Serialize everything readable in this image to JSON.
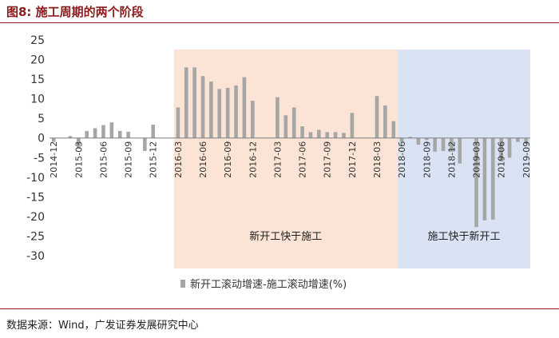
{
  "figure": {
    "title": "图8: 施工周期的两个阶段",
    "source": "数据来源：Wind，广发证券发展研究中心"
  },
  "chart_data": {
    "type": "bar",
    "title": "",
    "xlabel": "",
    "ylabel": "",
    "ylim": [
      -30,
      25
    ],
    "yticks": [
      25,
      20,
      15,
      10,
      5,
      0,
      -5,
      -10,
      -15,
      -20,
      -25,
      -30
    ],
    "grid": false,
    "legend_position": "bottom",
    "colors": {
      "bar": "#a6a6a6",
      "region1": "#fbe4d5",
      "region2": "#dae3f3"
    },
    "categories": [
      "2014-12",
      "2015-01",
      "2015-02",
      "2015-03",
      "2015-04",
      "2015-05",
      "2015-06",
      "2015-07",
      "2015-08",
      "2015-09",
      "2015-10",
      "2015-11",
      "2015-12",
      "2016-01",
      "2016-02",
      "2016-03",
      "2016-04",
      "2016-05",
      "2016-06",
      "2016-07",
      "2016-08",
      "2016-09",
      "2016-10",
      "2016-11",
      "2016-12",
      "2017-01",
      "2017-02",
      "2017-03",
      "2017-04",
      "2017-05",
      "2017-06",
      "2017-07",
      "2017-08",
      "2017-09",
      "2017-10",
      "2017-11",
      "2017-12",
      "2018-01",
      "2018-02",
      "2018-03",
      "2018-04",
      "2018-05",
      "2018-06",
      "2018-07",
      "2018-08",
      "2018-09",
      "2018-10",
      "2018-11",
      "2018-12",
      "2019-01",
      "2019-02",
      "2019-03",
      "2019-04",
      "2019-05",
      "2019-06",
      "2019-07",
      "2019-08",
      "2019-09"
    ],
    "xtick_labels": [
      "2014-12",
      "2015-03",
      "2015-06",
      "2015-09",
      "2015-12",
      "2016-03",
      "2016-06",
      "2016-09",
      "2016-12",
      "2017-03",
      "2017-06",
      "2017-09",
      "2017-12",
      "2018-03",
      "2018-06",
      "2018-09",
      "2018-12",
      "2019-03",
      "2019-06",
      "2019-09"
    ],
    "series": [
      {
        "name": "新开工滚动增速-施工滚动增速(%)",
        "values": [
          -1.0,
          null,
          0.5,
          -2.5,
          1.8,
          2.5,
          3.3,
          4.0,
          1.8,
          1.6,
          null,
          -3.3,
          3.4,
          null,
          null,
          7.8,
          18.0,
          18.0,
          15.8,
          14.4,
          12.5,
          12.8,
          13.4,
          15.5,
          9.5,
          null,
          null,
          10.4,
          5.8,
          7.8,
          3.0,
          1.5,
          2.1,
          1.5,
          1.5,
          1.3,
          6.4,
          null,
          null,
          10.7,
          8.3,
          4.3,
          -1.0,
          0.3,
          -1.7,
          -0.5,
          -3.5,
          -3.3,
          -3.5,
          -6.5,
          null,
          -22.7,
          -21.0,
          -20.8,
          -6.0,
          -5.0,
          -1.0,
          -1.5
        ]
      }
    ],
    "regions": [
      {
        "label": "新开工快于施工",
        "from": "2016-02",
        "to": "2018-05"
      },
      {
        "label": "施工快于新开工",
        "from": "2018-05",
        "to": "2019-09"
      }
    ]
  }
}
